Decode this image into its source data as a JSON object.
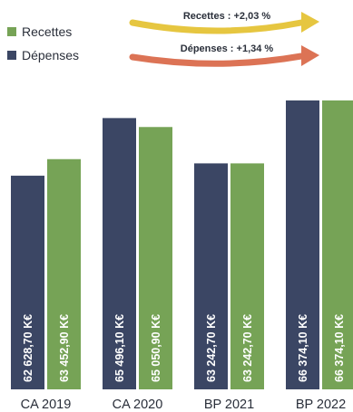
{
  "chart_data": {
    "type": "bar",
    "categories": [
      "CA 2019",
      "CA 2020",
      "BP 2021",
      "BP 2022"
    ],
    "series": [
      {
        "name": "Dépenses",
        "color": "#3b4664",
        "values": [
          62628.7,
          65496.1,
          63242.7,
          66374.1
        ],
        "labels": [
          "62 628,70 K€",
          "65 496,10 K€",
          "63 242,70 K€",
          "66 374,10 K€"
        ]
      },
      {
        "name": "Recettes",
        "color": "#76a356",
        "values": [
          63452.9,
          65050.9,
          63242.7,
          66374.1
        ],
        "labels": [
          "63 452,90 K€",
          "65 050,90 K€",
          "63 242,70 K€",
          "66 374,10 K€"
        ]
      }
    ],
    "legend": [
      {
        "name": "Recettes",
        "color": "#76a356"
      },
      {
        "name": "Dépenses",
        "color": "#3b4664"
      }
    ],
    "annotations": [
      {
        "text": "Recettes : +2,03 %",
        "color": "#e6c640"
      },
      {
        "text": "Dépenses : +1,34 %",
        "color": "#dc7355"
      }
    ],
    "legend_position": "top-left",
    "grid": false,
    "ylim": [
      0,
      67000
    ]
  }
}
